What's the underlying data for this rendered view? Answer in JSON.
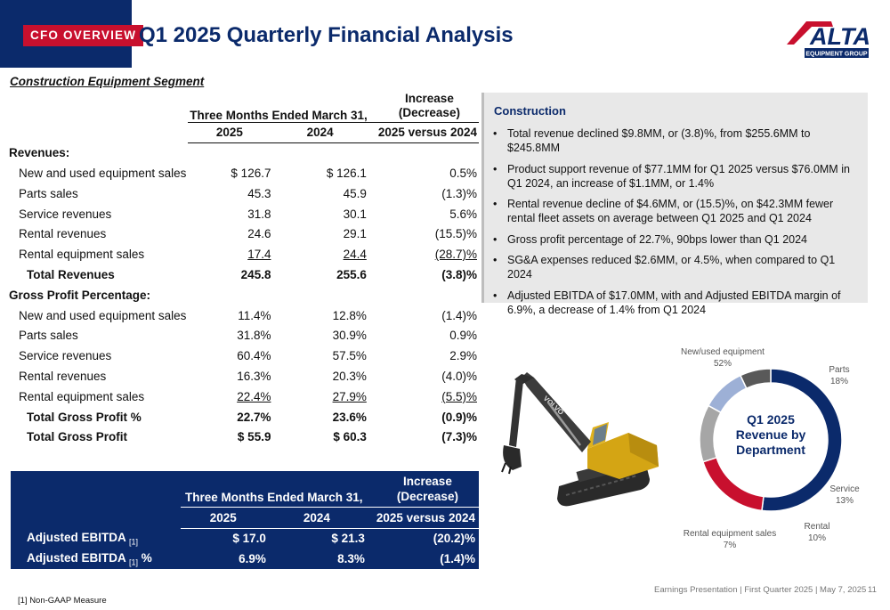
{
  "header": {
    "section_tag": "CFO OVERVIEW",
    "title": "Q1 2025 Quarterly Financial Analysis",
    "logo_text": "ALTA",
    "logo_sub": "EQUIPMENT GROUP"
  },
  "segment_title": "Construction Equipment Segment",
  "fin_table": {
    "period_header": "Three Months Ended March 31,",
    "increase_header_1": "Increase",
    "increase_header_2": "(Decrease)",
    "col_2025": "2025",
    "col_2024": "2024",
    "col_compare": "2025 versus 2024",
    "revenues_label": "Revenues:",
    "revenue_rows": [
      {
        "label": "New and used equipment sales",
        "v2025": "$ 126.7",
        "v2024": "$ 126.1",
        "change": "0.5%"
      },
      {
        "label": "Parts sales",
        "v2025": "45.3",
        "v2024": "45.9",
        "change": "(1.3)%"
      },
      {
        "label": "Service revenues",
        "v2025": "31.8",
        "v2024": "30.1",
        "change": "5.6%"
      },
      {
        "label": "Rental revenues",
        "v2025": "24.6",
        "v2024": "29.1",
        "change": "(15.5)%"
      },
      {
        "label": "Rental equipment sales",
        "v2025": "17.4",
        "v2024": "24.4",
        "change": "(28.7)%"
      }
    ],
    "total_revenues": {
      "label": "Total Revenues",
      "v2025": "245.8",
      "v2024": "255.6",
      "change": "(3.8)%"
    },
    "gp_label": "Gross Profit Percentage:",
    "gp_rows": [
      {
        "label": "New and used equipment sales",
        "v2025": "11.4%",
        "v2024": "12.8%",
        "change": "(1.4)%"
      },
      {
        "label": "Parts sales",
        "v2025": "31.8%",
        "v2024": "30.9%",
        "change": "0.9%"
      },
      {
        "label": "Service revenues",
        "v2025": "60.4%",
        "v2024": "57.5%",
        "change": "2.9%"
      },
      {
        "label": "Rental revenues",
        "v2025": "16.3%",
        "v2024": "20.3%",
        "change": "(4.0)%"
      },
      {
        "label": "Rental equipment sales",
        "v2025": "22.4%",
        "v2024": "27.9%",
        "change": "(5.5)%"
      }
    ],
    "total_gp_pct": {
      "label": "Total Gross Profit %",
      "v2025": "22.7%",
      "v2024": "23.6%",
      "change": "(0.9)%"
    },
    "total_gp": {
      "label": "Total Gross Profit",
      "v2025": "$ 55.9",
      "v2024": "$ 60.3",
      "change": "(7.3)%"
    }
  },
  "ebitda_table": {
    "period_header": "Three Months Ended March 31,",
    "increase_header_1": "Increase",
    "increase_header_2": "(Decrease)",
    "col_2025": "2025",
    "col_2024": "2024",
    "col_compare": "2025 versus 2024",
    "rows": [
      {
        "label": "Adjusted EBITDA",
        "footnote": "[1]",
        "suffix": "",
        "v2025": "$ 17.0",
        "v2024": "$ 21.3",
        "change": "(20.2)%"
      },
      {
        "label": "Adjusted EBITDA",
        "footnote": "[1]",
        "suffix": " %",
        "v2025": "6.9%",
        "v2024": "8.3%",
        "change": "(1.4)%"
      }
    ]
  },
  "notes": {
    "title": "Construction",
    "bullets": [
      "Total revenue declined $9.8MM, or (3.8)%, from $255.6MM to $245.8MM",
      "Product support revenue of $77.1MM for Q1 2025 versus $76.0MM in Q1 2024, an increase of $1.1MM, or 1.4%",
      "Rental revenue decline of $4.6MM, or (15.5)%, on $42.3MM fewer rental fleet assets on average between Q1 2025 and Q1 2024",
      "Gross profit percentage of 22.7%, 90bps lower than Q1 2024",
      "SG&A expenses reduced $2.6MM, or 4.5%, when compared to Q1 2024",
      "Adjusted EBITDA of $17.0MM, with and Adjusted EBITDA margin of 6.9%, a decrease of 1.4% from Q1 2024"
    ]
  },
  "excavator_brand": "VOLVO",
  "chart_data": {
    "type": "pie",
    "title": "Q1 2025 Revenue by Department",
    "title_lines": [
      "Q1 2025",
      "Revenue by",
      "Department"
    ],
    "categories": [
      "New/used equipment",
      "Parts",
      "Service",
      "Rental",
      "Rental equipment sales"
    ],
    "values": [
      52,
      18,
      13,
      10,
      7
    ],
    "value_labels": [
      "52%",
      "18%",
      "13%",
      "10%",
      "7%"
    ],
    "colors": [
      "#0b2a6b",
      "#c8102e",
      "#a6a6a6",
      "#9db0d6",
      "#595959"
    ],
    "donut": true,
    "legend": "none"
  },
  "footnote": "[1] Non-GAAP Measure",
  "footer": {
    "text": "Earnings Presentation | First Quarter 2025 | May 7, 2025",
    "page": "11"
  }
}
